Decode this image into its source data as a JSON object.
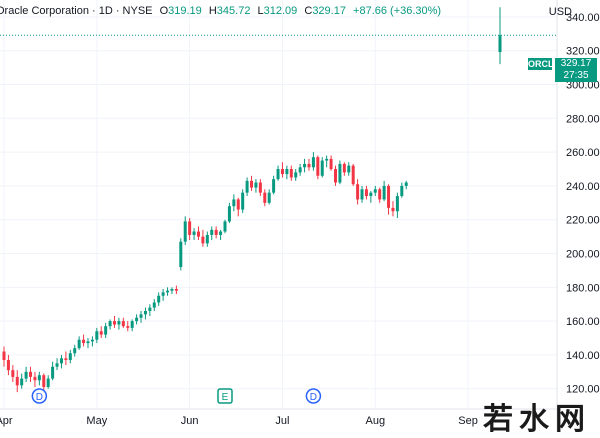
{
  "header": {
    "title": "Oracle Corporation · 1D · NYSE",
    "open_label": "O",
    "open": "319.19",
    "high_label": "H",
    "high": "345.72",
    "low_label": "L",
    "low": "312.09",
    "close_label": "C",
    "close": "329.17",
    "change": "+87.66 (+36.30%)"
  },
  "currency": "USD",
  "price_tag": {
    "symbol": "ORCL",
    "price": "329.17",
    "countdown": "27:35"
  },
  "watermark": "若水网",
  "colors": {
    "up": "#089981",
    "down": "#f23645",
    "grid": "#f0f3fa",
    "axis_text": "#131722",
    "badge": "#2962ff"
  },
  "chart_data": {
    "type": "candlestick",
    "title": "Oracle Corporation · 1D · NYSE",
    "ylabel": "USD",
    "ylim": [
      108,
      350
    ],
    "yticks": [
      120,
      140,
      160,
      180,
      200,
      220,
      240,
      260,
      280,
      300,
      320,
      340
    ],
    "x_labels": [
      {
        "label": "Apr",
        "index": 0
      },
      {
        "label": "May",
        "index": 21
      },
      {
        "label": "Jun",
        "index": 42
      },
      {
        "label": "Jul",
        "index": 63
      },
      {
        "label": "Aug",
        "index": 84
      },
      {
        "label": "Sep",
        "index": 105
      }
    ],
    "events": [
      {
        "type": "D",
        "index": 8
      },
      {
        "type": "E",
        "index": 50
      },
      {
        "type": "D",
        "index": 70
      }
    ],
    "ohlc": [
      [
        142,
        145,
        133,
        137
      ],
      [
        137,
        140,
        128,
        131
      ],
      [
        131,
        134,
        124,
        127
      ],
      [
        127,
        131,
        118,
        122
      ],
      [
        122,
        129,
        120,
        126
      ],
      [
        126,
        133,
        124,
        130
      ],
      [
        130,
        133,
        124,
        127
      ],
      [
        127,
        130,
        121,
        125
      ],
      [
        125,
        130,
        122,
        128
      ],
      [
        128,
        129,
        119,
        121
      ],
      [
        121,
        128,
        120,
        126
      ],
      [
        126,
        136,
        125,
        133
      ],
      [
        133,
        138,
        131,
        135
      ],
      [
        135,
        140,
        132,
        138
      ],
      [
        138,
        142,
        134,
        137
      ],
      [
        137,
        143,
        135,
        141
      ],
      [
        141,
        146,
        139,
        144
      ],
      [
        144,
        151,
        143,
        149
      ],
      [
        149,
        152,
        145,
        147
      ],
      [
        147,
        150,
        144,
        148
      ],
      [
        148,
        151,
        145,
        149
      ],
      [
        149,
        156,
        147,
        154
      ],
      [
        154,
        157,
        150,
        152
      ],
      [
        152,
        159,
        150,
        157
      ],
      [
        157,
        161,
        155,
        160
      ],
      [
        160,
        163,
        156,
        158
      ],
      [
        158,
        162,
        155,
        160
      ],
      [
        160,
        162,
        156,
        157
      ],
      [
        157,
        160,
        154,
        156
      ],
      [
        156,
        161,
        154,
        160
      ],
      [
        160,
        164,
        158,
        162
      ],
      [
        162,
        166,
        159,
        164
      ],
      [
        164,
        168,
        161,
        166
      ],
      [
        166,
        170,
        163,
        168
      ],
      [
        168,
        173,
        166,
        171
      ],
      [
        171,
        177,
        169,
        175
      ],
      [
        175,
        179,
        172,
        177
      ],
      [
        177,
        180,
        175,
        178
      ],
      [
        178,
        180,
        176,
        179
      ],
      [
        179,
        181,
        176,
        178
      ],
      [
        192,
        209,
        190,
        207
      ],
      [
        207,
        222,
        205,
        219
      ],
      [
        219,
        221,
        208,
        211
      ],
      [
        211,
        215,
        208,
        213
      ],
      [
        213,
        216,
        208,
        210
      ],
      [
        210,
        214,
        204,
        206
      ],
      [
        206,
        213,
        204,
        211
      ],
      [
        211,
        216,
        208,
        214
      ],
      [
        214,
        216,
        209,
        211
      ],
      [
        211,
        214,
        208,
        213
      ],
      [
        213,
        220,
        212,
        219
      ],
      [
        219,
        230,
        218,
        228
      ],
      [
        228,
        235,
        225,
        232
      ],
      [
        232,
        233,
        222,
        226
      ],
      [
        226,
        238,
        224,
        236
      ],
      [
        236,
        245,
        234,
        243
      ],
      [
        243,
        246,
        237,
        239
      ],
      [
        239,
        244,
        236,
        242
      ],
      [
        242,
        244,
        234,
        236
      ],
      [
        236,
        238,
        228,
        230
      ],
      [
        230,
        238,
        229,
        236
      ],
      [
        236,
        246,
        235,
        244
      ],
      [
        244,
        252,
        243,
        250
      ],
      [
        250,
        254,
        245,
        247
      ],
      [
        247,
        252,
        244,
        250
      ],
      [
        250,
        252,
        243,
        245
      ],
      [
        245,
        250,
        243,
        248
      ],
      [
        248,
        253,
        246,
        251
      ],
      [
        251,
        256,
        248,
        253
      ],
      [
        253,
        256,
        249,
        251
      ],
      [
        251,
        260,
        249,
        257
      ],
      [
        257,
        258,
        244,
        246
      ],
      [
        246,
        257,
        245,
        255
      ],
      [
        255,
        258,
        251,
        256
      ],
      [
        256,
        258,
        249,
        250
      ],
      [
        250,
        252,
        240,
        242
      ],
      [
        242,
        255,
        241,
        253
      ],
      [
        253,
        254,
        246,
        248
      ],
      [
        248,
        254,
        246,
        252
      ],
      [
        252,
        253,
        240,
        241
      ],
      [
        241,
        244,
        229,
        232
      ],
      [
        232,
        240,
        230,
        238
      ],
      [
        238,
        240,
        232,
        234
      ],
      [
        234,
        237,
        230,
        236
      ],
      [
        236,
        240,
        234,
        238
      ],
      [
        238,
        239,
        230,
        232
      ],
      [
        232,
        243,
        231,
        240
      ],
      [
        240,
        241,
        223,
        227
      ],
      [
        227,
        231,
        222,
        225
      ],
      [
        225,
        236,
        221,
        234
      ],
      [
        234,
        242,
        233,
        240
      ],
      [
        240,
        243,
        238,
        242
      ]
    ],
    "last_candle": [
      319.19,
      345.72,
      312.09,
      329.17
    ],
    "last_price": 329.17
  }
}
